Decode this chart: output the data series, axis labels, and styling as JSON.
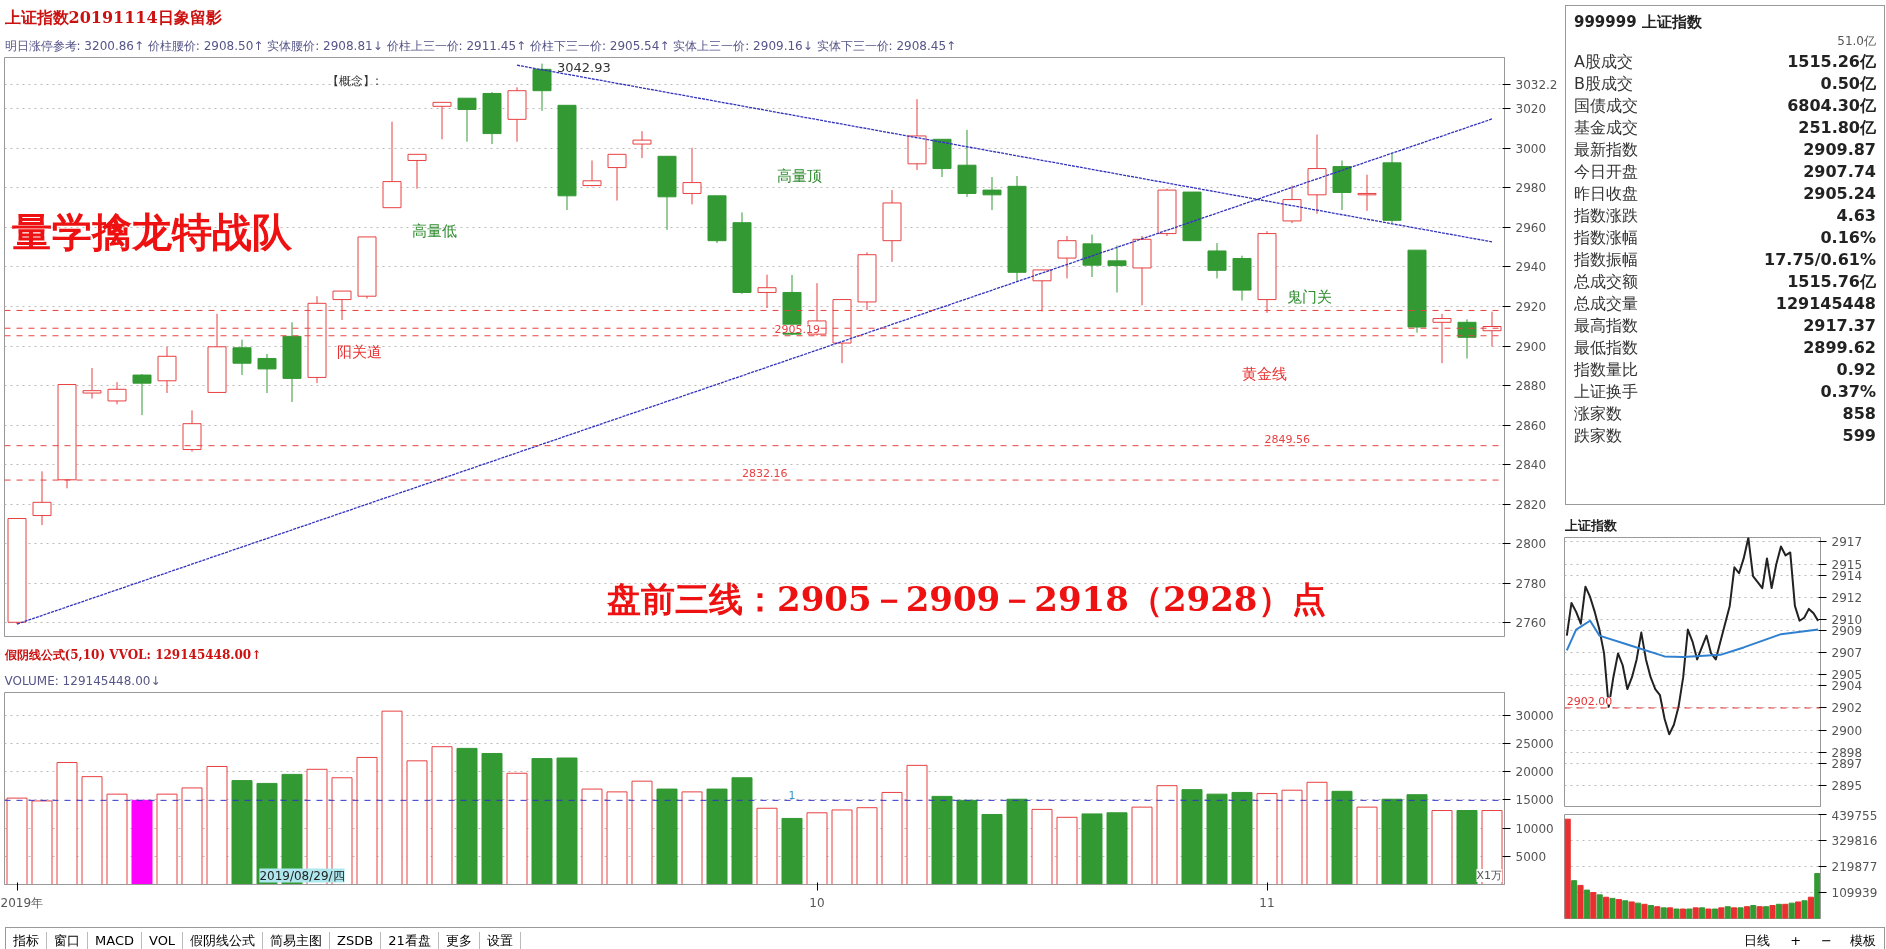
{
  "chart_data": [
    {
      "type": "candlestick",
      "title": "上证指数20191114日象留影",
      "subtitle": "明日涨停参考: 3200.86↑  价柱腰价: 2908.50↑  实体腰价: 2908.81↓  价柱上三一价: 2911.45↑  价柱下三一价: 2905.54↑  实体上三一价: 2909.16↓  实体下三一价: 2908.45↑",
      "categories": [
        null,
        null,
        null,
        null,
        null,
        null,
        null,
        null,
        null,
        null,
        null,
        null,
        null,
        null,
        null,
        null,
        null,
        null,
        null,
        null,
        null,
        null,
        null,
        null,
        null,
        null,
        null,
        null,
        null,
        null,
        null,
        null,
        null,
        null,
        null,
        null,
        null,
        null,
        null,
        null,
        null,
        null,
        null,
        null,
        null,
        null,
        null,
        null,
        null,
        null,
        null,
        null,
        null,
        null,
        null,
        null,
        null,
        null,
        null,
        null
      ],
      "ohlc": [
        [
          2760.2,
          2812.7,
          2759.3,
          2812.7
        ],
        [
          2814.2,
          2836.6,
          2809.4,
          2820.9
        ],
        [
          2832.3,
          2880.5,
          2828.0,
          2880.5
        ],
        [
          2876.2,
          2888.9,
          2873.4,
          2877.4
        ],
        [
          2872.2,
          2881.7,
          2870.5,
          2878.1
        ],
        [
          2885.3,
          2885.8,
          2865.0,
          2881.2
        ],
        [
          2882.4,
          2899.6,
          2876.2,
          2894.8
        ],
        [
          2847.6,
          2867.4,
          2846.6,
          2860.7
        ],
        [
          2876.5,
          2916.3,
          2876.5,
          2899.6
        ],
        [
          2899.1,
          2903.2,
          2885.3,
          2891.3
        ],
        [
          2893.7,
          2896.0,
          2876.2,
          2888.4
        ],
        [
          2904.9,
          2912.0,
          2871.7,
          2883.6
        ],
        [
          2884.1,
          2925.2,
          2881.2,
          2921.6
        ],
        [
          2923.5,
          2927.8,
          2913.2,
          2927.8
        ],
        [
          2925.2,
          2955.2,
          2924.0,
          2955.2
        ],
        [
          2970.0,
          3013.5,
          2970.0,
          2983.2
        ],
        [
          2993.9,
          2997.0,
          2979.6,
          2997.0
        ],
        [
          3021.3,
          3023.3,
          3004.6,
          3023.3
        ],
        [
          3025.4,
          3025.4,
          3003.4,
          3019.7
        ],
        [
          3027.8,
          3028.5,
          3002.2,
          3007.5
        ],
        [
          3014.7,
          3030.9,
          3003.4,
          3029.2
        ],
        [
          3040.0,
          3042.93,
          3019.0,
          3029.2
        ],
        [
          3021.8,
          3021.8,
          2968.8,
          2976.0
        ],
        [
          2981.2,
          2993.9,
          2980.8,
          2983.6
        ],
        [
          2990.3,
          2997.0,
          2973.6,
          2997.0
        ],
        [
          3002.2,
          3008.7,
          2995.1,
          3004.2
        ],
        [
          2996.0,
          2996.0,
          2958.8,
          2975.5
        ],
        [
          2977.2,
          3000.3,
          2971.7,
          2982.7
        ],
        [
          2976.0,
          2976.0,
          2952.1,
          2953.3
        ],
        [
          2962.4,
          2967.6,
          2926.4,
          2927.1
        ],
        [
          2927.1,
          2936.1,
          2919.2,
          2929.5
        ],
        [
          2927.1,
          2935.9,
          2905.5,
          2906.0
        ],
        [
          2906.0,
          2931.8,
          2905.19,
          2912.7
        ],
        [
          2901.5,
          2923.5,
          2891.3,
          2923.5
        ],
        [
          2922.3,
          2947.4,
          2918.2,
          2946.2
        ],
        [
          2953.3,
          2978.9,
          2942.6,
          2972.4
        ],
        [
          2992.2,
          3024.9,
          2989.1,
          3006.3
        ],
        [
          3004.6,
          3004.6,
          2985.5,
          2989.8
        ],
        [
          2991.5,
          3009.4,
          2975.5,
          2977.2
        ],
        [
          2978.9,
          2985.5,
          2968.8,
          2976.5
        ],
        [
          2980.8,
          2986.0,
          2933.0,
          2937.3
        ],
        [
          2933.0,
          2938.5,
          2917.5,
          2938.5
        ],
        [
          2944.5,
          2955.7,
          2934.2,
          2953.3
        ],
        [
          2951.7,
          2956.4,
          2934.9,
          2940.9
        ],
        [
          2943.1,
          2950.9,
          2927.1,
          2940.7
        ],
        [
          2939.5,
          2955.7,
          2920.6,
          2954.0
        ],
        [
          2956.9,
          2979.6,
          2955.7,
          2978.9
        ],
        [
          2977.9,
          2977.9,
          2953.3,
          2953.3
        ],
        [
          2948.1,
          2952.1,
          2934.2,
          2938.3
        ],
        [
          2944.3,
          2945.7,
          2923.0,
          2928.3
        ],
        [
          2923.5,
          2958.1,
          2916.8,
          2956.9
        ],
        [
          2963.3,
          2981.2,
          2962.2,
          2974.1
        ],
        [
          2976.5,
          3007.0,
          2966.9,
          2989.8
        ],
        [
          2990.8,
          2993.9,
          2968.8,
          2977.7
        ],
        [
          2976.5,
          2986.7,
          2968.4,
          2977.2
        ],
        [
          2992.7,
          2997.5,
          2962.2,
          2963.6
        ],
        [
          2948.5,
          2948.5,
          2906.8,
          2909.6
        ],
        [
          2912.0,
          2916.3,
          2891.3,
          2913.9
        ],
        [
          2912.0,
          2913.5,
          2893.7,
          2904.4
        ],
        [
          2907.74,
          2917.37,
          2899.62,
          2909.87
        ]
      ],
      "colors": [
        "#e84040",
        "#e84040",
        "#e84040",
        "#e84040",
        "#e84040",
        "#339933",
        "#e84040",
        "#e84040",
        "#e84040",
        "#339933",
        "#339933",
        "#339933",
        "#e84040",
        "#e84040",
        "#e84040",
        "#e84040",
        "#e84040",
        "#e84040",
        "#339933",
        "#339933",
        "#e84040",
        "#339933",
        "#339933",
        "#e84040",
        "#e84040",
        "#e84040",
        "#339933",
        "#e84040",
        "#339933",
        "#339933",
        "#e84040",
        "#339933",
        "#e84040",
        "#e84040",
        "#e84040",
        "#e84040",
        "#e84040",
        "#339933",
        "#339933",
        "#339933",
        "#339933",
        "#e84040",
        "#e84040",
        "#339933",
        "#339933",
        "#e84040",
        "#e84040",
        "#339933",
        "#339933",
        "#339933",
        "#e84040",
        "#e84040",
        "#e84040",
        "#339933",
        "#e84040",
        "#339933",
        "#339933",
        "#e84040",
        "#339933",
        "#e84040"
      ],
      "series": [
        {
          "type": "line",
          "values": [
            2759.3,
            null,
            null,
            null,
            null,
            null,
            null,
            null,
            null,
            null,
            null,
            null,
            null,
            null,
            null,
            null,
            null,
            null,
            null,
            null,
            null,
            null,
            null,
            null,
            null,
            null,
            null,
            null,
            null,
            null,
            null,
            null,
            null,
            null,
            null,
            null,
            null,
            null,
            null,
            null,
            null,
            null,
            null,
            null,
            null,
            null,
            null,
            null,
            null,
            null,
            null,
            null,
            null,
            null,
            null,
            null,
            null,
            null,
            null,
            3014.9
          ],
          "color": "#3333bb",
          "line_style": "dotted"
        },
        {
          "type": "line",
          "values": [
            null,
            null,
            null,
            null,
            null,
            null,
            null,
            null,
            null,
            null,
            null,
            null,
            null,
            null,
            null,
            null,
            null,
            null,
            null,
            null,
            3042.1,
            null,
            null,
            null,
            null,
            null,
            null,
            null,
            null,
            null,
            null,
            null,
            null,
            null,
            null,
            null,
            null,
            null,
            null,
            null,
            null,
            null,
            null,
            null,
            null,
            null,
            null,
            null,
            null,
            null,
            null,
            null,
            null,
            null,
            null,
            null,
            null,
            null,
            null,
            2952.7
          ],
          "color": "#3333bb",
          "line_style": "dotted"
        }
      ],
      "ylim": [
        2753,
        3046
      ],
      "yticks": [
        2760,
        2780,
        2800,
        2820,
        2840,
        2860,
        2880,
        2900,
        2920,
        2940,
        2960,
        2980,
        3000,
        3020,
        3032.2
      ],
      "grid": "y",
      "tick_labels": "y",
      "ref_lines": [
        {
          "axis": "y",
          "value": 2918,
          "color": "#e84040",
          "line_style": "dashed"
        },
        {
          "axis": "y",
          "value": 2909,
          "color": "#e84040",
          "line_style": "dashed"
        },
        {
          "axis": "y",
          "value": 2905.19,
          "label": "2905.19",
          "color": "#e84040",
          "line_style": "dashed"
        },
        {
          "axis": "y",
          "value": 2849.56,
          "label": "2849.56",
          "color": "#e84040",
          "line_style": "dashed"
        },
        {
          "axis": "y",
          "value": 2832.16,
          "label": "2832.16",
          "color": "#e84040",
          "line_style": "dashed"
        }
      ],
      "annotations": [
        "【概念】:",
        "3042.93",
        "量学擒龙特战队",
        "高量低",
        "阳关道",
        "高量顶",
        "鬼门关",
        "黄金线",
        "盘前三线：2905－2909－2918（2928）点"
      ]
    },
    {
      "type": "bar",
      "title": "假阴线公式(5,10) VVOL: 129145448.00↑",
      "subtitle": "VOLUME: 129145448.00↓",
      "categories": [
        "2019年",
        null,
        null,
        null,
        null,
        null,
        null,
        null,
        null,
        null,
        null,
        null,
        null,
        null,
        null,
        null,
        null,
        null,
        null,
        null,
        null,
        null,
        null,
        null,
        null,
        null,
        null,
        null,
        null,
        null,
        null,
        null,
        "10",
        null,
        null,
        null,
        null,
        null,
        null,
        null,
        null,
        null,
        null,
        null,
        null,
        null,
        null,
        null,
        null,
        null,
        "11",
        null,
        null,
        null,
        null,
        null,
        null,
        null,
        null,
        null
      ],
      "values": [
        15300,
        14800,
        21600,
        19100,
        16000,
        14900,
        16000,
        17100,
        20900,
        18400,
        17900,
        19500,
        20400,
        18900,
        22500,
        30700,
        21900,
        24400,
        24100,
        23200,
        19700,
        22300,
        22400,
        16900,
        16400,
        18300,
        16900,
        16400,
        16900,
        18900,
        13500,
        11700,
        12700,
        13200,
        13600,
        16300,
        21100,
        15600,
        14900,
        12400,
        15100,
        13300,
        11900,
        12500,
        12700,
        13700,
        17500,
        16800,
        16000,
        16300,
        16100,
        16700,
        18100,
        16500,
        13700,
        15100,
        15900,
        13100,
        13100,
        13100
      ],
      "colors": [
        "#e84040",
        "#e84040",
        "#e84040",
        "#e84040",
        "#e84040",
        "#ff00ff",
        "#e84040",
        "#e84040",
        "#e84040",
        "#339933",
        "#339933",
        "#339933",
        "#e84040",
        "#e84040",
        "#e84040",
        "#e84040",
        "#e84040",
        "#e84040",
        "#339933",
        "#339933",
        "#e84040",
        "#339933",
        "#339933",
        "#e84040",
        "#e84040",
        "#e84040",
        "#339933",
        "#e84040",
        "#339933",
        "#339933",
        "#e84040",
        "#339933",
        "#e84040",
        "#e84040",
        "#e84040",
        "#e84040",
        "#e84040",
        "#339933",
        "#339933",
        "#339933",
        "#339933",
        "#e84040",
        "#e84040",
        "#339933",
        "#339933",
        "#e84040",
        "#e84040",
        "#339933",
        "#339933",
        "#339933",
        "#e84040",
        "#e84040",
        "#e84040",
        "#339933",
        "#e84040",
        "#339933",
        "#339933",
        "#e84040",
        "#339933",
        "#e84040"
      ],
      "ylim": [
        0,
        34000
      ],
      "yticks": [
        5000,
        10000,
        15000,
        20000,
        25000,
        30000
      ],
      "grid": "y",
      "ref_lines": [
        {
          "axis": "y",
          "value": 14900,
          "color": "#3333cc",
          "line_style": "dashed"
        }
      ],
      "annotations": [
        "2019/08/29/四",
        "X1万",
        "1"
      ]
    },
    {
      "type": "other",
      "title": "999999 上证指数",
      "annotations": [
        "51.0亿"
      ],
      "categories": [
        "A股成交",
        "B股成交",
        "国债成交",
        "基金成交",
        "最新指数",
        "今日开盘",
        "昨日收盘",
        "指数涨跌",
        "指数涨幅",
        "指数振幅",
        "总成交额",
        "总成交量",
        "最高指数",
        "最低指数",
        "指数量比",
        "上证换手",
        "涨家数",
        "跌家数"
      ],
      "value_labels": [
        "1515.26亿",
        "0.50亿",
        "6804.30亿",
        "251.80亿",
        "2909.87",
        "2907.74",
        "2905.24",
        "4.63",
        "0.16%",
        "17.75/0.61%",
        "1515.76亿",
        "129145448",
        "2917.37",
        "2899.62",
        "0.92",
        "0.37%",
        "858",
        "599"
      ]
    },
    {
      "type": "line",
      "title": "上证指数",
      "categories": [
        null,
        null,
        null,
        null,
        null,
        null,
        null,
        null,
        null,
        null,
        null,
        null,
        null,
        null,
        null,
        null,
        null,
        null,
        null,
        null,
        null,
        null,
        null,
        null,
        null,
        null,
        null,
        null,
        null,
        null,
        null,
        null,
        null,
        null,
        null,
        null,
        null,
        null,
        null,
        null,
        null,
        null,
        null,
        null,
        null,
        null,
        null,
        null,
        null,
        null,
        null,
        null,
        null,
        null,
        null
      ],
      "series": [
        {
          "values": [
            2908.54,
            2911.49,
            2910.68,
            2909.61,
            2912.96,
            2912.03,
            2910.68,
            2909.08,
            2906.93,
            2902.1,
            2904.78,
            2906.93,
            2905.86,
            2903.71,
            2904.78,
            2906.39,
            2908.81,
            2906.39,
            2904.78,
            2903.71,
            2903.17,
            2901.03,
            2899.62,
            2900.49,
            2902.1,
            2904.78,
            2909.08,
            2908.0,
            2906.39,
            2907.47,
            2908.54,
            2906.93,
            2906.39,
            2908.0,
            2909.61,
            2911.22,
            2914.71,
            2914.17,
            2915.51,
            2917.37,
            2913.9,
            2913.37,
            2912.83,
            2915.51,
            2912.83,
            2914.98,
            2916.59,
            2915.78,
            2916.05,
            2911.22,
            2909.88,
            2910.15,
            2910.95,
            2910.55,
            2909.87
          ],
          "color": "#222222"
        },
        {
          "values": [
            2907.2,
            null,
            2909.08,
            null,
            null,
            2909.88,
            null,
            2908.54,
            null,
            null,
            null,
            null,
            null,
            2907.73,
            null,
            null,
            null,
            null,
            null,
            null,
            null,
            2906.66,
            null,
            null,
            null,
            2906.61,
            null,
            null,
            null,
            null,
            null,
            null,
            null,
            2906.8,
            null,
            null,
            null,
            null,
            2907.47,
            null,
            null,
            null,
            null,
            null,
            null,
            null,
            2908.67,
            null,
            null,
            null,
            null,
            null,
            null,
            null,
            2909.08
          ],
          "color": "#3080d0"
        }
      ],
      "ylim": [
        2893.1,
        2917.4
      ],
      "yticks": [
        2917,
        2915,
        2914,
        2912,
        2910,
        2909,
        2907,
        2905,
        2904,
        2902,
        2900,
        2898,
        2897,
        2895
      ],
      "grid": "y",
      "tick_labels": "y",
      "ref_lines": [
        {
          "axis": "y",
          "value": 2902.0,
          "label": "2902.00",
          "color": "#e83030",
          "line_style": "dashed"
        }
      ]
    },
    {
      "type": "bar",
      "categories": [
        null,
        null,
        null,
        null,
        null,
        null,
        null,
        null,
        null,
        null,
        null,
        null,
        null,
        null,
        null,
        null,
        null,
        null,
        null,
        null,
        null,
        null,
        null,
        null,
        null,
        null,
        null,
        null,
        null,
        null,
        null,
        null,
        null,
        null,
        null,
        null,
        null,
        null,
        null,
        null
      ],
      "values": [
        420000,
        160000,
        140000,
        120000,
        110000,
        100000,
        90000,
        85000,
        80000,
        75000,
        70000,
        65000,
        60000,
        55000,
        50000,
        45000,
        45000,
        40000,
        40000,
        40000,
        45000,
        45000,
        40000,
        40000,
        45000,
        50000,
        45000,
        45000,
        50000,
        55000,
        50000,
        50000,
        55000,
        60000,
        60000,
        65000,
        70000,
        75000,
        90000,
        190000
      ],
      "colors": [
        "#e83030",
        "#339933",
        "#e83030",
        "#339933",
        "#e83030",
        "#339933",
        "#e83030",
        "#339933",
        "#e83030",
        "#339933",
        "#e83030",
        "#339933",
        "#e83030",
        "#339933",
        "#e83030",
        "#339933",
        "#e83030",
        "#339933",
        "#e83030",
        "#339933",
        "#e83030",
        "#339933",
        "#e83030",
        "#339933",
        "#e83030",
        "#339933",
        "#e83030",
        "#339933",
        "#e83030",
        "#339933",
        "#e83030",
        "#339933",
        "#e83030",
        "#339933",
        "#e83030",
        "#339933",
        "#e83030",
        "#339933",
        "#e83030",
        "#339933"
      ],
      "ylim": [
        0,
        439755
      ],
      "yticks": [
        109939,
        219877,
        329816,
        439755
      ],
      "grid": true,
      "tick_labels": "y"
    },
    {
      "type": "other",
      "annotations": [
        "指标",
        "窗口",
        "MACD",
        "VOL",
        "假阴线公式",
        "简易主图",
        "ZSDB",
        "21看盘",
        "更多",
        "设置",
        "模板",
        "日线",
        "+",
        "−"
      ]
    }
  ]
}
